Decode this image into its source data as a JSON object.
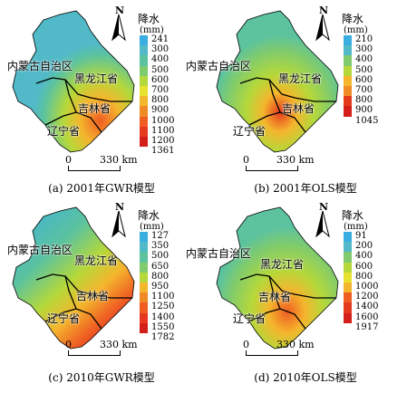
{
  "legend_title": "降水",
  "legend_unit": "(mm)",
  "north_label": "N",
  "scale_zero": "0",
  "scale_distance": "330 km",
  "region_labels": {
    "inner_mongolia": "内蒙古自治区",
    "heilongjiang": "黑龙江省",
    "jilin": "吉林省",
    "liaoning": "辽宁省"
  },
  "legend_colors": [
    "#3aaee0",
    "#52b9c8",
    "#5cc39e",
    "#7fcb6e",
    "#b5d83a",
    "#e6e22e",
    "#f4b62d",
    "#f08a27",
    "#ef5d23",
    "#e53a1e",
    "#d51f1a"
  ],
  "panels": [
    {
      "id": "a",
      "caption": "(a) 2001年GWR模型",
      "legend_ticks": [
        "241",
        "300",
        "400",
        "500",
        "600",
        "700",
        "800",
        "900",
        "1000",
        "1100",
        "1200",
        "1361"
      ]
    },
    {
      "id": "b",
      "caption": "(b) 2001年OLS模型",
      "legend_ticks": [
        "210",
        "300",
        "400",
        "500",
        "600",
        "700",
        "800",
        "900",
        "1045"
      ]
    },
    {
      "id": "c",
      "caption": "(c) 2010年GWR模型",
      "legend_ticks": [
        "127",
        "350",
        "500",
        "650",
        "800",
        "950",
        "1100",
        "1250",
        "1400",
        "1550",
        "1782"
      ]
    },
    {
      "id": "d",
      "caption": "(d) 2010年OLS模型",
      "legend_ticks": [
        "91",
        "200",
        "400",
        "600",
        "800",
        "1000",
        "1200",
        "1400",
        "1600",
        "1917"
      ]
    }
  ]
}
